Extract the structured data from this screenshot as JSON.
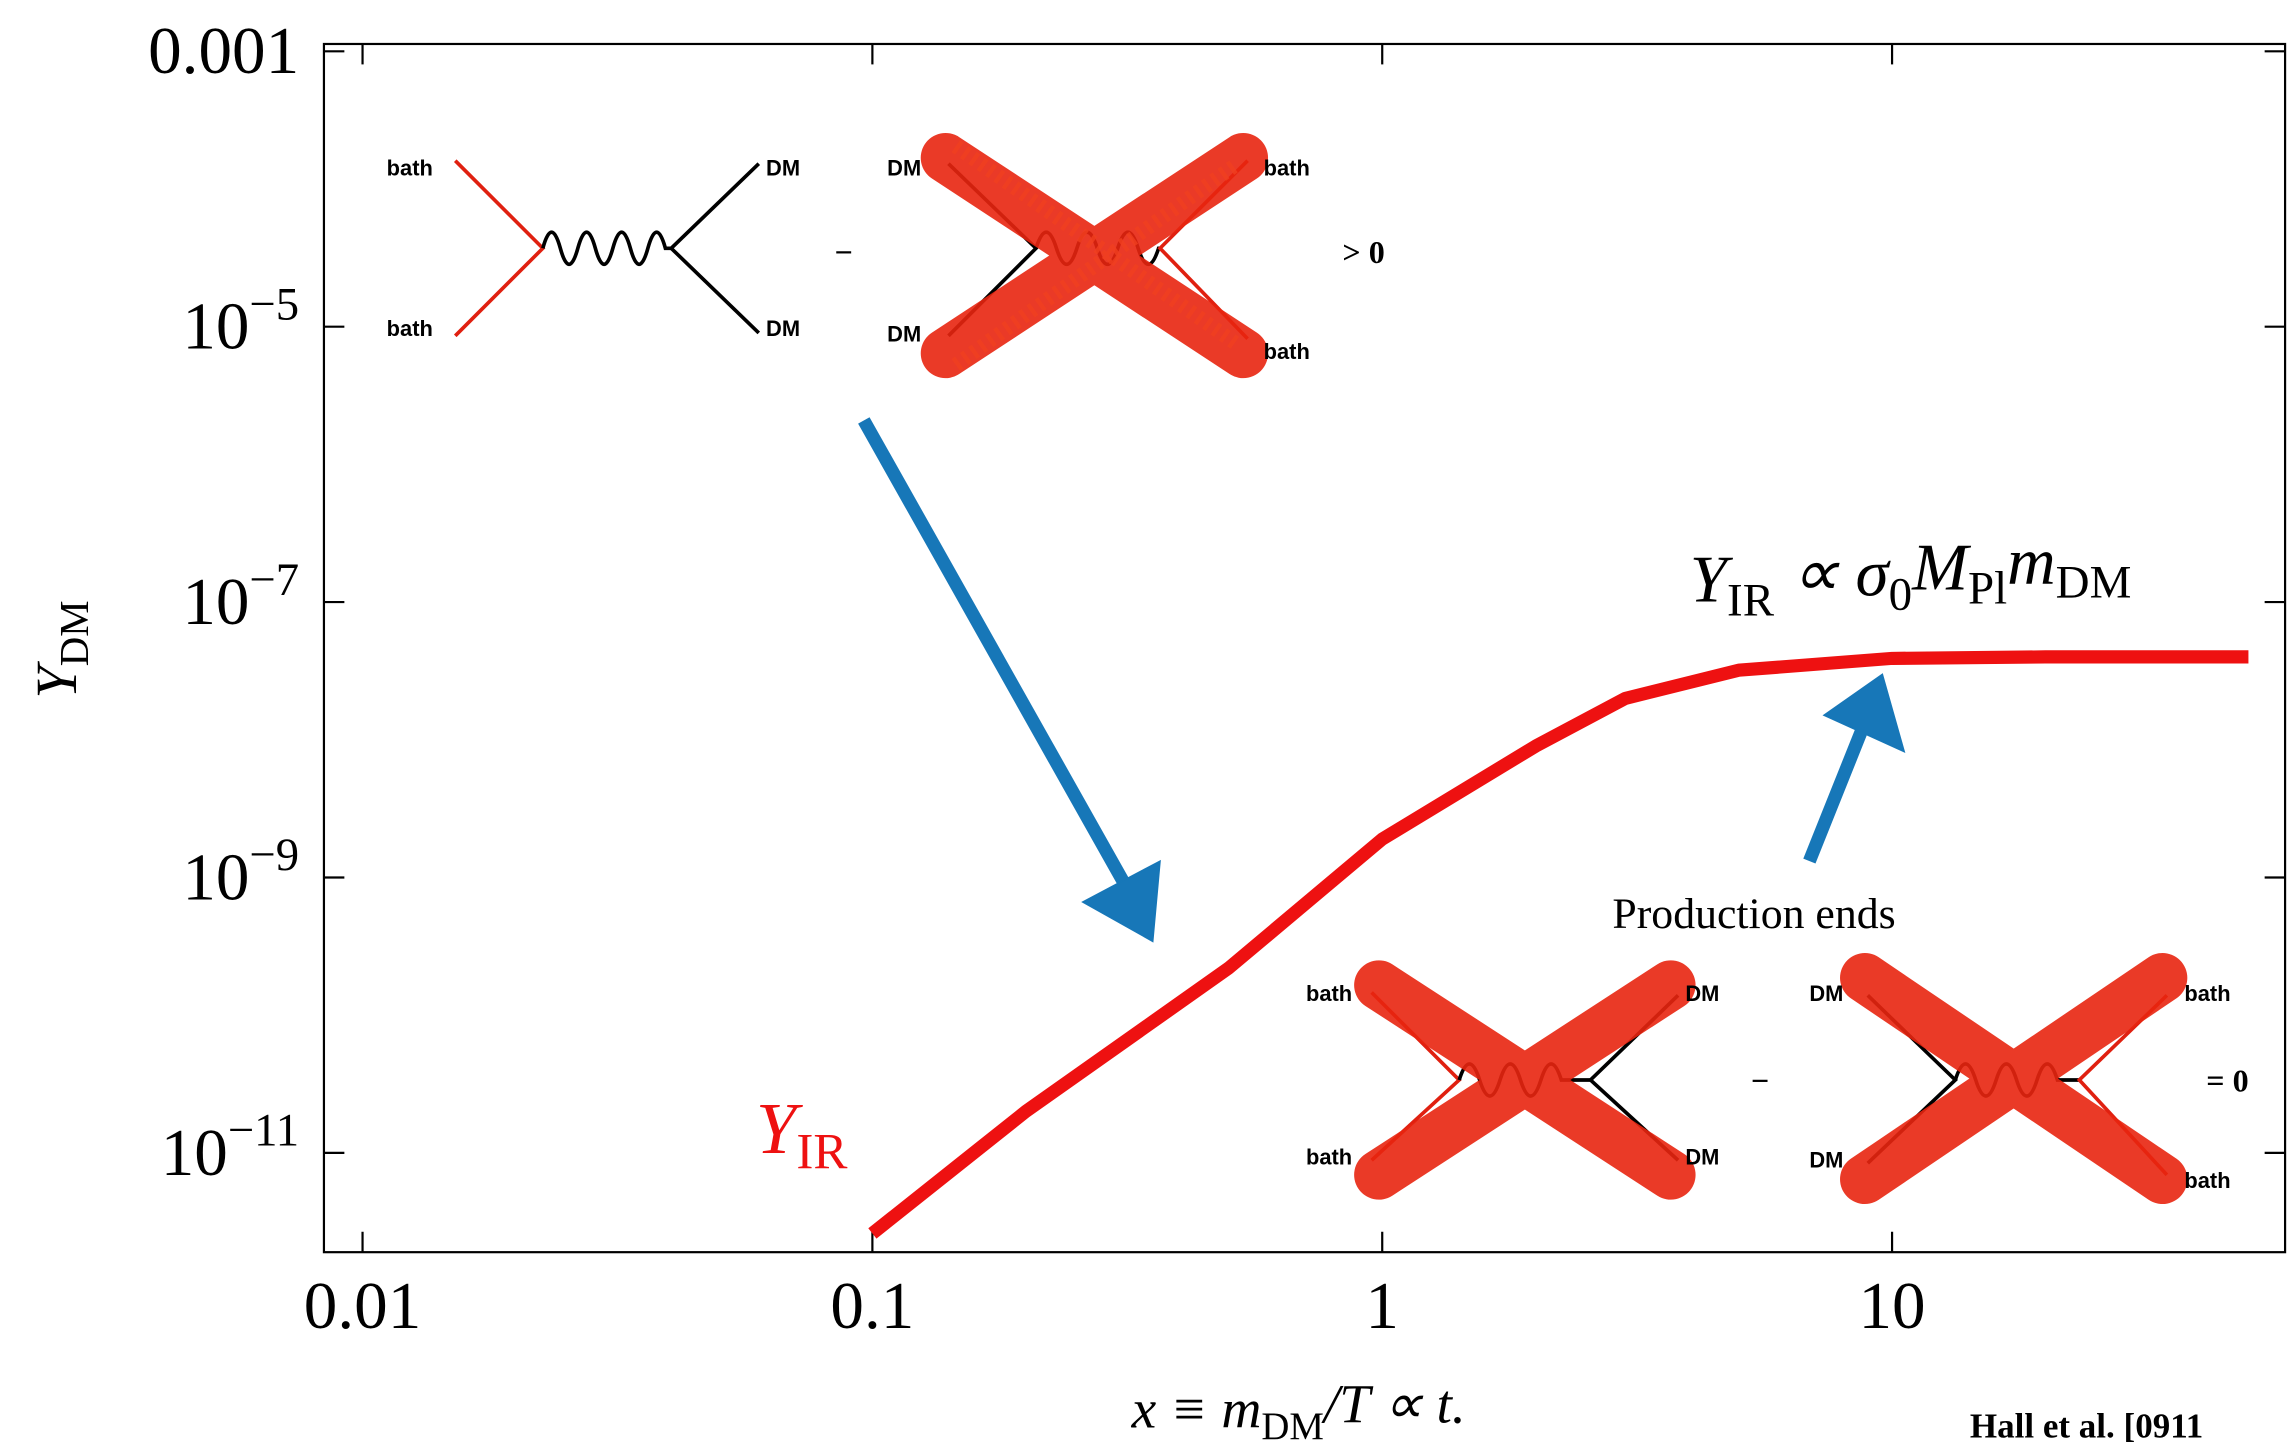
{
  "chart_data": {
    "type": "line",
    "xscale": "log",
    "yscale": "log",
    "xlim": [
      0.0084,
      59
    ],
    "ylim": [
      1.9e-12,
      0.00113
    ],
    "xticks": [
      0.01,
      0.1,
      1,
      10
    ],
    "yticks": [
      0.001,
      {
        "value": 1e-05,
        "label": "10−5"
      },
      {
        "value": 1e-07,
        "label": "10−7"
      },
      {
        "value": 1e-09,
        "label": "10−9"
      },
      {
        "value": 1e-11,
        "label": "10−11"
      }
    ],
    "x": [
      0.1,
      0.2,
      0.5,
      1,
      2,
      3,
      5,
      10,
      20,
      50
    ],
    "series": [
      {
        "color": "#ee1111",
        "values": [
          2.6e-12,
          2e-11,
          2.2e-10,
          1.9e-09,
          9e-09,
          2e-08,
          3.2e-08,
          3.9e-08,
          4e-08,
          4e-08
        ]
      }
    ],
    "ylabel": [
      {
        "text": "Y"
      },
      {
        "sub": "DM"
      }
    ],
    "xlabel": [
      {
        "text": "x ≡ m"
      },
      {
        "sub": "DM"
      },
      {
        "text": "/T ∝ t."
      }
    ],
    "curve_label": [
      {
        "text": "Y"
      },
      {
        "sub": "IR"
      }
    ],
    "plateau_label": [
      {
        "text": "Y"
      },
      {
        "sub": "IR"
      },
      {
        "text": " ∝ σ"
      },
      {
        "sub": "0"
      },
      {
        "text": "M"
      },
      {
        "sub": "Pl"
      },
      {
        "text": "m"
      },
      {
        "sub": "DM"
      }
    ],
    "annotation": "Production ends",
    "citation": "Hall et al. [0911"
  },
  "diagram_labels": [
    "bath",
    "bath",
    "DM",
    "DM",
    "DM",
    "DM",
    "bath",
    "bath",
    "bath",
    "bath",
    "DM",
    "DM",
    "DM",
    "DM",
    "bath",
    "bath"
  ],
  "diagram_signs": [
    "−",
    "> 0",
    "−",
    "= 0"
  ]
}
